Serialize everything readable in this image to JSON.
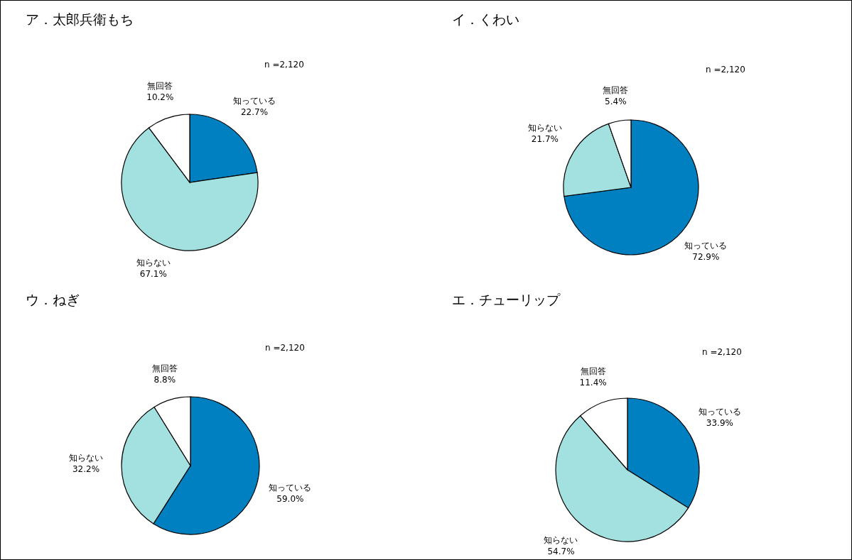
{
  "chart_data": [
    {
      "type": "pie",
      "title": "ア．太郎兵衛もち",
      "categories": [
        "知っている",
        "知らない",
        "無回答"
      ],
      "values": [
        22.7,
        67.1,
        10.2
      ],
      "colors": [
        "#0080c0",
        "#a3e0e0",
        "#ffffff"
      ],
      "value_labels": [
        "22.7%",
        "67.1%",
        "10.2%"
      ],
      "annotations": [
        "n =2,120"
      ],
      "legend": false
    },
    {
      "type": "pie",
      "title": "イ．くわい",
      "categories": [
        "知っている",
        "知らない",
        "無回答"
      ],
      "values": [
        72.9,
        21.7,
        5.4
      ],
      "colors": [
        "#0080c0",
        "#a3e0e0",
        "#ffffff"
      ],
      "value_labels": [
        "72.9%",
        "21.7%",
        "5.4%"
      ],
      "annotations": [
        "n =2,120"
      ],
      "legend": false
    },
    {
      "type": "pie",
      "title": "ウ．ねぎ",
      "categories": [
        "知っている",
        "知らない",
        "無回答"
      ],
      "values": [
        59.0,
        32.2,
        8.8
      ],
      "colors": [
        "#0080c0",
        "#a3e0e0",
        "#ffffff"
      ],
      "value_labels": [
        "59.0%",
        "32.2%",
        "8.8%"
      ],
      "annotations": [
        "n =2,120"
      ],
      "legend": false
    },
    {
      "type": "pie",
      "title": "エ．チューリップ",
      "categories": [
        "知っている",
        "知らない",
        "無回答"
      ],
      "values": [
        33.9,
        54.7,
        11.4
      ],
      "colors": [
        "#0080c0",
        "#a3e0e0",
        "#ffffff"
      ],
      "value_labels": [
        "33.9%",
        "54.7%",
        "11.4%"
      ],
      "annotations": [
        "n =2,120"
      ],
      "legend": false
    }
  ]
}
